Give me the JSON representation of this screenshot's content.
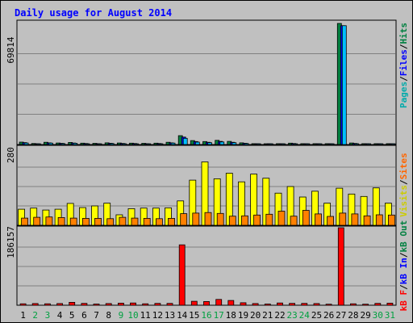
{
  "chart_data": {
    "type": "bar",
    "title": "Daily usage for August 2014",
    "categories": [
      "1",
      "2",
      "3",
      "4",
      "5",
      "6",
      "7",
      "8",
      "9",
      "10",
      "11",
      "12",
      "13",
      "14",
      "15",
      "16",
      "17",
      "18",
      "19",
      "20",
      "21",
      "22",
      "23",
      "24",
      "25",
      "26",
      "27",
      "28",
      "29",
      "30",
      "31"
    ],
    "weekend_days": [
      "2",
      "3",
      "9",
      "10",
      "16",
      "17",
      "23",
      "24",
      "30",
      "31"
    ],
    "panels": [
      {
        "name": "hits-files-pages",
        "max_label": "69814",
        "ymax": 69814,
        "legend": [
          {
            "label": "Pages",
            "color": "#00aaaa"
          },
          {
            "label": "/",
            "color": "#000000"
          },
          {
            "label": "Files",
            "color": "#0000ff"
          },
          {
            "label": "/",
            "color": "#000000"
          },
          {
            "label": "Hits",
            "color": "#008040"
          }
        ],
        "series": [
          {
            "name": "Hits",
            "color": "#008040",
            "values": [
              1400,
              600,
              1300,
              900,
              1200,
              800,
              700,
              1000,
              900,
              800,
              700,
              800,
              1300,
              5100,
              2300,
              1700,
              2400,
              1800,
              1000,
              500,
              400,
              500,
              800,
              500,
              500,
              500,
              69814,
              900,
              500,
              500,
              500
            ]
          },
          {
            "name": "Files",
            "color": "#0000ff",
            "values": [
              1100,
              450,
              1000,
              700,
              900,
              600,
              500,
              750,
              650,
              600,
              500,
              600,
              1000,
              4300,
              1700,
              1300,
              1800,
              1300,
              750,
              350,
              300,
              350,
              600,
              350,
              350,
              350,
              68500,
              650,
              350,
              350,
              350
            ]
          },
          {
            "name": "Pages",
            "color": "#00c0ff",
            "values": [
              900,
              350,
              850,
              550,
              750,
              450,
              400,
              600,
              500,
              450,
              400,
              450,
              850,
              3600,
              1400,
              1050,
              1500,
              1050,
              600,
              280,
              240,
              280,
              450,
              280,
              280,
              280,
              68500,
              500,
              280,
              280,
              280
            ]
          }
        ]
      },
      {
        "name": "visits-sites",
        "max_label": "280",
        "ymax": 280,
        "legend": [
          {
            "label": "Visits",
            "color": "#cccc00"
          },
          {
            "label": "/",
            "color": "#000000"
          },
          {
            "label": "Sites",
            "color": "#ff6600"
          }
        ],
        "series": [
          {
            "name": "Visits",
            "color": "#ffff00",
            "values": [
              58,
              62,
              55,
              58,
              79,
              64,
              70,
              80,
              38,
              60,
              62,
              62,
              63,
              88,
              163,
              229,
              168,
              188,
              157,
              185,
              170,
              116,
              140,
              102,
              123,
              80,
              134,
              113,
              104,
              135,
              80
            ]
          },
          {
            "name": "Sites",
            "color": "#ff8000",
            "values": [
              26,
              29,
              30,
              28,
              26,
              25,
              25,
              24,
              29,
              26,
              25,
              24,
              25,
              42,
              44,
              46,
              43,
              33,
              34,
              37,
              40,
              51,
              33,
              54,
              41,
              32,
              44,
              41,
              34,
              38,
              37
            ]
          }
        ]
      },
      {
        "name": "kbytes",
        "max_label": "186157",
        "ymax": 186157,
        "legend": [
          {
            "label": "kB F",
            "color": "#ff0000"
          },
          {
            "label": "/",
            "color": "#000000"
          },
          {
            "label": "kB In",
            "color": "#0000ff"
          },
          {
            "label": "/",
            "color": "#000000"
          },
          {
            "label": "kB Out",
            "color": "#008040"
          }
        ],
        "series": [
          {
            "name": "kB F",
            "color": "#ff0000",
            "values": [
              3500,
              4000,
              3500,
              4000,
              7000,
              4500,
              3000,
              4000,
              5000,
              5500,
              3500,
              4500,
              4500,
              145000,
              9500,
              9000,
              14000,
              11500,
              6000,
              4000,
              3000,
              5500,
              4500,
              4500,
              4000,
              2500,
              186157,
              3500,
              2500,
              4500,
              5000
            ]
          }
        ]
      }
    ]
  }
}
